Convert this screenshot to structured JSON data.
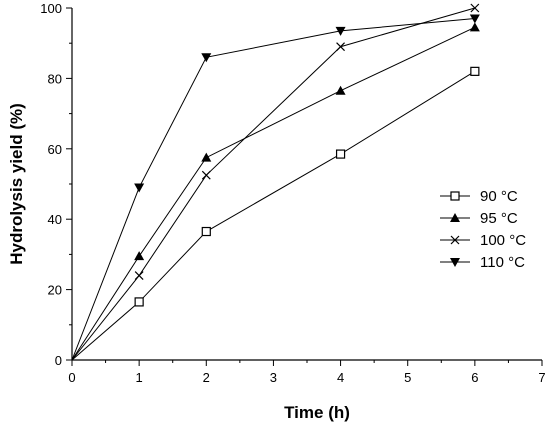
{
  "chart_data": {
    "type": "line",
    "xlabel": "Time (h)",
    "ylabel": "Hydrolysis yield (%)",
    "xlim": [
      0,
      7
    ],
    "ylim": [
      0,
      100
    ],
    "xticks": [
      0,
      1,
      2,
      3,
      4,
      5,
      6,
      7
    ],
    "yticks": [
      0,
      20,
      40,
      60,
      80,
      100
    ],
    "x": [
      0,
      1,
      2,
      4,
      6
    ],
    "legend_position": "center-right",
    "grid": false,
    "series": [
      {
        "name": "90 °C",
        "marker": "open-square",
        "values": [
          0,
          16.5,
          36.5,
          58.5,
          82
        ]
      },
      {
        "name": "95 °C",
        "marker": "filled-triangle-up",
        "values": [
          0,
          29.5,
          57.5,
          76.5,
          94.5
        ]
      },
      {
        "name": "100 °C",
        "marker": "x-cross",
        "values": [
          0,
          24,
          52.5,
          89,
          100
        ]
      },
      {
        "name": "110 °C",
        "marker": "filled-triangle-down",
        "values": [
          0,
          49,
          86,
          93.5,
          97
        ]
      }
    ]
  }
}
